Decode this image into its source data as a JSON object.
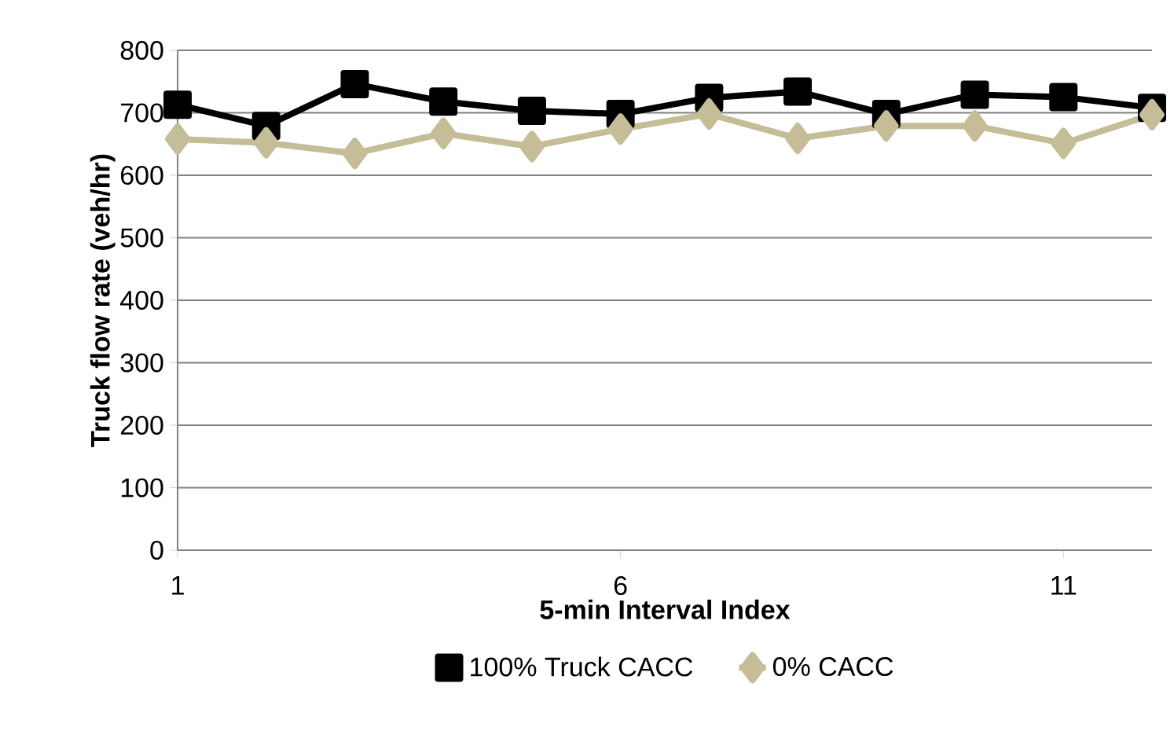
{
  "chart_data": {
    "type": "line",
    "xlabel": "5-min Interval Index",
    "ylabel": "Truck flow rate (veh/hr)",
    "x": [
      1,
      2,
      3,
      4,
      5,
      6,
      7,
      8,
      9,
      10,
      11,
      12
    ],
    "series": [
      {
        "name": "100% Truck CACC",
        "color": "#000000",
        "marker": "square",
        "values": [
          713,
          679,
          746,
          718,
          703,
          698,
          724,
          734,
          698,
          729,
          725,
          708
        ]
      },
      {
        "name": "0% CACC",
        "color": "#c4bd97",
        "marker": "diamond",
        "values": [
          658,
          652,
          635,
          667,
          646,
          674,
          698,
          659,
          679,
          679,
          651,
          697
        ]
      }
    ],
    "xlim": [
      1,
      12
    ],
    "xticks": [
      1,
      6,
      11
    ],
    "ylim": [
      0,
      800
    ],
    "yticks": [
      0,
      100,
      200,
      300,
      400,
      500,
      600,
      700,
      800
    ],
    "grid": "y",
    "legend": "bottom",
    "line_style": "solid"
  }
}
